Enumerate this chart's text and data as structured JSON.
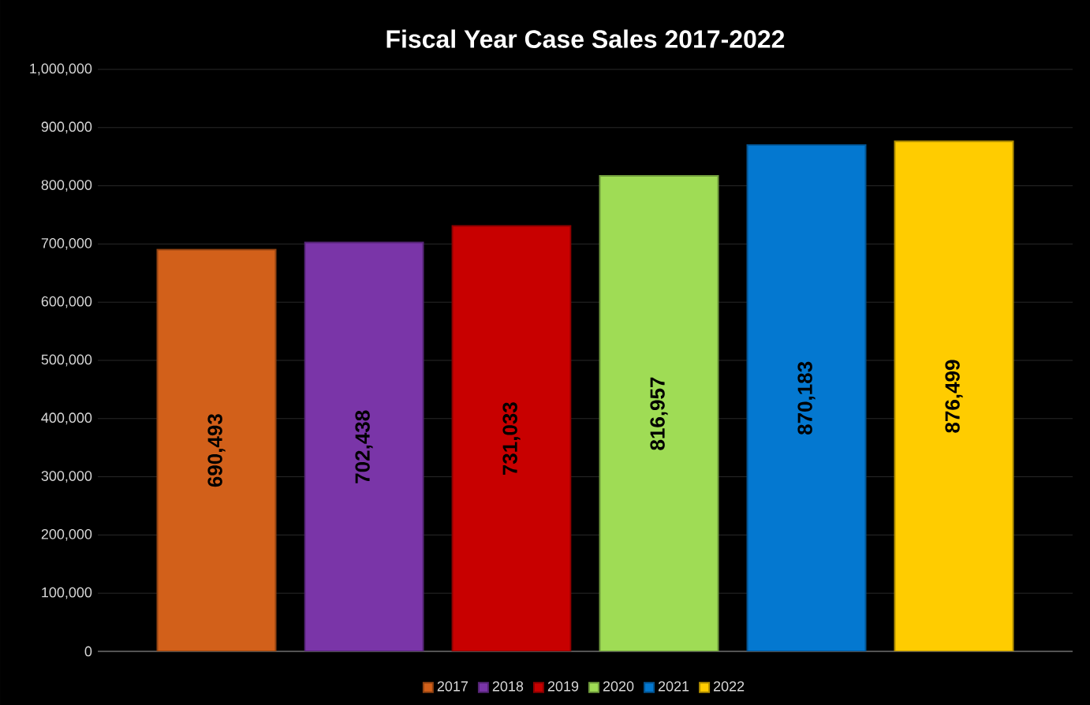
{
  "chart_data": {
    "type": "bar",
    "title": "Fiscal Year Case Sales 2017-2022",
    "categories": [
      null
    ],
    "series": [
      {
        "name": "2017",
        "color": "#d2601a",
        "values": [
          690493
        ],
        "value_labels": [
          "690,493"
        ]
      },
      {
        "name": "2018",
        "color": "#7a35a8",
        "values": [
          702438
        ],
        "value_labels": [
          "702,438"
        ]
      },
      {
        "name": "2019",
        "color": "#c80000",
        "values": [
          731033
        ],
        "value_labels": [
          "731,033"
        ]
      },
      {
        "name": "2020",
        "color": "#9fdc55",
        "values": [
          816957
        ],
        "value_labels": [
          "816,957"
        ]
      },
      {
        "name": "2021",
        "color": "#0478d0",
        "values": [
          870183
        ],
        "value_labels": [
          "870,183"
        ]
      },
      {
        "name": "2022",
        "color": "#ffcc00",
        "values": [
          876499
        ],
        "value_labels": [
          "876,499"
        ]
      }
    ],
    "ylim": [
      0,
      1000000
    ],
    "yticks": [
      {
        "value": 0,
        "label": "0"
      },
      {
        "value": 100000,
        "label": "100,000"
      },
      {
        "value": 200000,
        "label": "200,000"
      },
      {
        "value": 300000,
        "label": "300,000"
      },
      {
        "value": 400000,
        "label": "400,000"
      },
      {
        "value": 500000,
        "label": "500,000"
      },
      {
        "value": 600000,
        "label": "600,000"
      },
      {
        "value": 700000,
        "label": "700,000"
      },
      {
        "value": 800000,
        "label": "800,000"
      },
      {
        "value": 900000,
        "label": "900,000"
      },
      {
        "value": 1000000,
        "label": "1,000,000"
      }
    ],
    "grid": "y",
    "legend": "bottom"
  }
}
